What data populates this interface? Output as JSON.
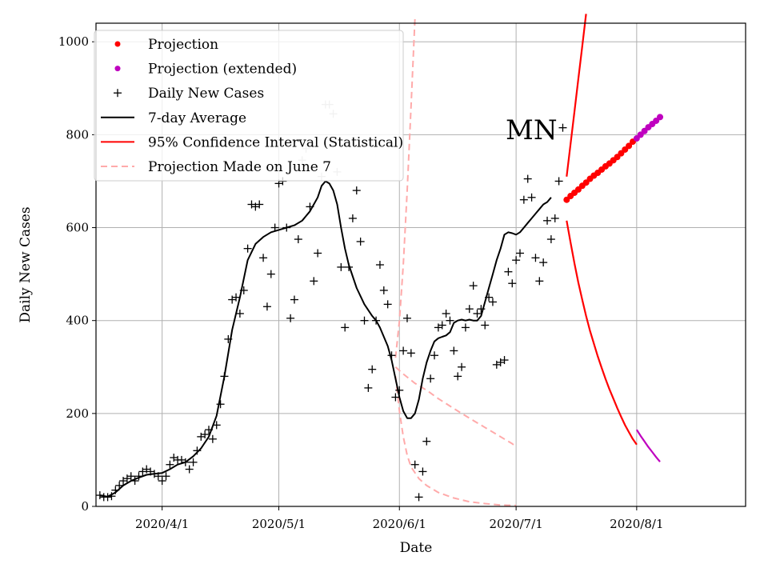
{
  "chart_data": {
    "type": "line",
    "title": "",
    "annotation": "MN",
    "xlabel": "Date",
    "ylabel": "Daily New Cases",
    "ylim": [
      0,
      1040
    ],
    "x_start": "2020-03-15",
    "x_end": "2020-08-29",
    "y_ticks": [
      0,
      200,
      400,
      600,
      800,
      1000
    ],
    "x_ticks": [
      {
        "label": "2020/4/1",
        "day": 17
      },
      {
        "label": "2020/5/1",
        "day": 47
      },
      {
        "label": "2020/6/1",
        "day": 78
      },
      {
        "label": "2020/7/1",
        "day": 108
      },
      {
        "label": "2020/8/1",
        "day": 139
      }
    ],
    "grid": true,
    "legend_position": "top-left",
    "legend": [
      {
        "label": "Projection",
        "kind": "dot",
        "color": "#ff0000"
      },
      {
        "label": "Projection (extended)",
        "kind": "dot",
        "color": "#bf00bf"
      },
      {
        "label": "Daily New Cases",
        "kind": "plus",
        "color": "#000000"
      },
      {
        "label": "7-day Average",
        "kind": "line",
        "color": "#000000"
      },
      {
        "label": "95% Confidence Interval (Statistical)",
        "kind": "line",
        "color": "#ff0000"
      },
      {
        "label": "Projection Made on June 7",
        "kind": "dash",
        "color": "#ffaaaa"
      }
    ],
    "daily_new_cases": [
      [
        1,
        24
      ],
      [
        2,
        20
      ],
      [
        3,
        20
      ],
      [
        4,
        22
      ],
      [
        5,
        35
      ],
      [
        6,
        45
      ],
      [
        7,
        55
      ],
      [
        8,
        60
      ],
      [
        9,
        65
      ],
      [
        10,
        55
      ],
      [
        11,
        65
      ],
      [
        12,
        75
      ],
      [
        13,
        80
      ],
      [
        14,
        75
      ],
      [
        15,
        70
      ],
      [
        16,
        65
      ],
      [
        17,
        55
      ],
      [
        18,
        65
      ],
      [
        19,
        90
      ],
      [
        20,
        105
      ],
      [
        21,
        100
      ],
      [
        22,
        100
      ],
      [
        23,
        95
      ],
      [
        24,
        80
      ],
      [
        25,
        95
      ],
      [
        26,
        120
      ],
      [
        27,
        150
      ],
      [
        28,
        155
      ],
      [
        29,
        165
      ],
      [
        30,
        145
      ],
      [
        31,
        175
      ],
      [
        32,
        220
      ],
      [
        33,
        280
      ],
      [
        34,
        360
      ],
      [
        35,
        445
      ],
      [
        36,
        450
      ],
      [
        37,
        415
      ],
      [
        38,
        465
      ],
      [
        39,
        555
      ],
      [
        40,
        650
      ],
      [
        41,
        645
      ],
      [
        42,
        650
      ],
      [
        43,
        535
      ],
      [
        44,
        430
      ],
      [
        45,
        500
      ],
      [
        46,
        600
      ],
      [
        47,
        695
      ],
      [
        48,
        700
      ],
      [
        49,
        600
      ],
      [
        50,
        405
      ],
      [
        51,
        445
      ],
      [
        52,
        575
      ],
      [
        53,
        745
      ],
      [
        54,
        770
      ],
      [
        55,
        645
      ],
      [
        56,
        485
      ],
      [
        57,
        545
      ],
      [
        58,
        710
      ],
      [
        59,
        865
      ],
      [
        60,
        865
      ],
      [
        61,
        845
      ],
      [
        62,
        720
      ],
      [
        63,
        515
      ],
      [
        64,
        385
      ],
      [
        65,
        515
      ],
      [
        66,
        620
      ],
      [
        67,
        680
      ],
      [
        68,
        570
      ],
      [
        69,
        400
      ],
      [
        70,
        255
      ],
      [
        71,
        295
      ],
      [
        72,
        400
      ],
      [
        73,
        520
      ],
      [
        74,
        465
      ],
      [
        75,
        435
      ],
      [
        76,
        325
      ],
      [
        77,
        235
      ],
      [
        78,
        250
      ],
      [
        79,
        335
      ],
      [
        80,
        405
      ],
      [
        81,
        330
      ],
      [
        82,
        90
      ],
      [
        83,
        20
      ],
      [
        84,
        75
      ],
      [
        85,
        140
      ],
      [
        86,
        275
      ],
      [
        87,
        325
      ],
      [
        88,
        385
      ],
      [
        89,
        390
      ],
      [
        90,
        415
      ],
      [
        91,
        400
      ],
      [
        92,
        335
      ],
      [
        93,
        280
      ],
      [
        94,
        300
      ],
      [
        95,
        385
      ],
      [
        96,
        425
      ],
      [
        97,
        475
      ],
      [
        98,
        415
      ],
      [
        99,
        425
      ],
      [
        100,
        390
      ],
      [
        101,
        450
      ],
      [
        102,
        440
      ],
      [
        103,
        305
      ],
      [
        104,
        310
      ],
      [
        105,
        315
      ],
      [
        106,
        505
      ],
      [
        107,
        480
      ],
      [
        108,
        530
      ],
      [
        109,
        545
      ],
      [
        110,
        660
      ],
      [
        111,
        705
      ],
      [
        112,
        665
      ],
      [
        113,
        535
      ],
      [
        114,
        485
      ],
      [
        115,
        525
      ],
      [
        116,
        615
      ],
      [
        117,
        575
      ],
      [
        118,
        620
      ],
      [
        119,
        700
      ],
      [
        120,
        815
      ]
    ],
    "seven_day_average": [
      [
        1,
        24
      ],
      [
        3,
        21
      ],
      [
        5,
        30
      ],
      [
        7,
        45
      ],
      [
        9,
        55
      ],
      [
        11,
        62
      ],
      [
        13,
        68
      ],
      [
        15,
        70
      ],
      [
        17,
        72
      ],
      [
        19,
        80
      ],
      [
        21,
        90
      ],
      [
        23,
        95
      ],
      [
        25,
        108
      ],
      [
        27,
        125
      ],
      [
        29,
        150
      ],
      [
        31,
        195
      ],
      [
        33,
        280
      ],
      [
        35,
        380
      ],
      [
        37,
        450
      ],
      [
        39,
        530
      ],
      [
        41,
        565
      ],
      [
        43,
        580
      ],
      [
        45,
        590
      ],
      [
        47,
        595
      ],
      [
        49,
        600
      ],
      [
        51,
        605
      ],
      [
        53,
        615
      ],
      [
        55,
        635
      ],
      [
        57,
        665
      ],
      [
        58,
        690
      ],
      [
        59,
        700
      ],
      [
        60,
        695
      ],
      [
        61,
        680
      ],
      [
        62,
        650
      ],
      [
        63,
        600
      ],
      [
        64,
        555
      ],
      [
        65,
        520
      ],
      [
        67,
        470
      ],
      [
        69,
        435
      ],
      [
        71,
        410
      ],
      [
        72,
        400
      ],
      [
        73,
        385
      ],
      [
        74,
        365
      ],
      [
        75,
        345
      ],
      [
        76,
        315
      ],
      [
        77,
        275
      ],
      [
        78,
        235
      ],
      [
        79,
        205
      ],
      [
        80,
        190
      ],
      [
        81,
        190
      ],
      [
        82,
        200
      ],
      [
        83,
        230
      ],
      [
        84,
        275
      ],
      [
        85,
        310
      ],
      [
        86,
        335
      ],
      [
        87,
        355
      ],
      [
        88,
        362
      ],
      [
        89,
        365
      ],
      [
        90,
        368
      ],
      [
        91,
        375
      ],
      [
        92,
        395
      ],
      [
        93,
        400
      ],
      [
        94,
        402
      ],
      [
        95,
        400
      ],
      [
        96,
        402
      ],
      [
        97,
        400
      ],
      [
        98,
        400
      ],
      [
        99,
        410
      ],
      [
        100,
        440
      ],
      [
        101,
        470
      ],
      [
        102,
        500
      ],
      [
        103,
        530
      ],
      [
        104,
        555
      ],
      [
        105,
        585
      ],
      [
        106,
        590
      ],
      [
        107,
        588
      ],
      [
        108,
        585
      ],
      [
        109,
        590
      ],
      [
        110,
        600
      ],
      [
        111,
        610
      ],
      [
        112,
        620
      ],
      [
        113,
        630
      ],
      [
        114,
        640
      ],
      [
        115,
        650
      ],
      [
        116,
        655
      ],
      [
        117,
        665
      ]
    ],
    "projection": [
      [
        121,
        660
      ],
      [
        122,
        668
      ],
      [
        123,
        675
      ],
      [
        124,
        682
      ],
      [
        125,
        690
      ],
      [
        126,
        697
      ],
      [
        127,
        705
      ],
      [
        128,
        712
      ],
      [
        129,
        718
      ],
      [
        130,
        725
      ],
      [
        131,
        732
      ],
      [
        132,
        738
      ],
      [
        133,
        745
      ],
      [
        134,
        752
      ],
      [
        135,
        760
      ],
      [
        136,
        768
      ],
      [
        137,
        776
      ],
      [
        138,
        785
      ]
    ],
    "projection_extended": [
      [
        139,
        792
      ],
      [
        140,
        800
      ],
      [
        141,
        808
      ],
      [
        142,
        816
      ],
      [
        143,
        823
      ],
      [
        144,
        830
      ],
      [
        145,
        838
      ]
    ],
    "ci_upper": [
      [
        121,
        710
      ],
      [
        122,
        780
      ],
      [
        123,
        850
      ],
      [
        124,
        920
      ],
      [
        125,
        990
      ],
      [
        126,
        1060
      ]
    ],
    "ci_lower": [
      [
        121,
        615
      ],
      [
        122,
        568
      ],
      [
        123,
        523
      ],
      [
        124,
        482
      ],
      [
        125,
        445
      ],
      [
        126,
        410
      ],
      [
        127,
        378
      ],
      [
        128,
        350
      ],
      [
        129,
        323
      ],
      [
        130,
        298
      ],
      [
        131,
        274
      ],
      [
        132,
        252
      ],
      [
        133,
        232
      ],
      [
        134,
        212
      ],
      [
        135,
        193
      ],
      [
        136,
        175
      ],
      [
        137,
        160
      ],
      [
        138,
        145
      ],
      [
        139,
        133
      ]
    ],
    "ci_lower_extended": [
      [
        139,
        165
      ],
      [
        140,
        152
      ],
      [
        141,
        140
      ],
      [
        142,
        128
      ],
      [
        143,
        117
      ],
      [
        144,
        106
      ],
      [
        145,
        96
      ]
    ],
    "june7_projection_upper": [
      [
        77,
        320
      ],
      [
        78,
        400
      ],
      [
        79,
        520
      ],
      [
        80,
        680
      ],
      [
        81,
        860
      ],
      [
        82,
        1050
      ]
    ],
    "june7_projection_mid": [
      [
        77,
        300
      ],
      [
        79,
        285
      ],
      [
        82,
        265
      ],
      [
        85,
        250
      ],
      [
        88,
        232
      ],
      [
        91,
        216
      ],
      [
        94,
        200
      ],
      [
        97,
        185
      ],
      [
        100,
        170
      ],
      [
        103,
        155
      ],
      [
        105,
        145
      ],
      [
        107,
        135
      ],
      [
        108,
        128
      ]
    ],
    "june7_projection_lower": [
      [
        77,
        280
      ],
      [
        78,
        205
      ],
      [
        79,
        150
      ],
      [
        80,
        110
      ],
      [
        81,
        85
      ],
      [
        83,
        60
      ],
      [
        85,
        45
      ],
      [
        88,
        30
      ],
      [
        92,
        18
      ],
      [
        96,
        10
      ],
      [
        100,
        6
      ],
      [
        104,
        3
      ],
      [
        108,
        2
      ]
    ]
  }
}
